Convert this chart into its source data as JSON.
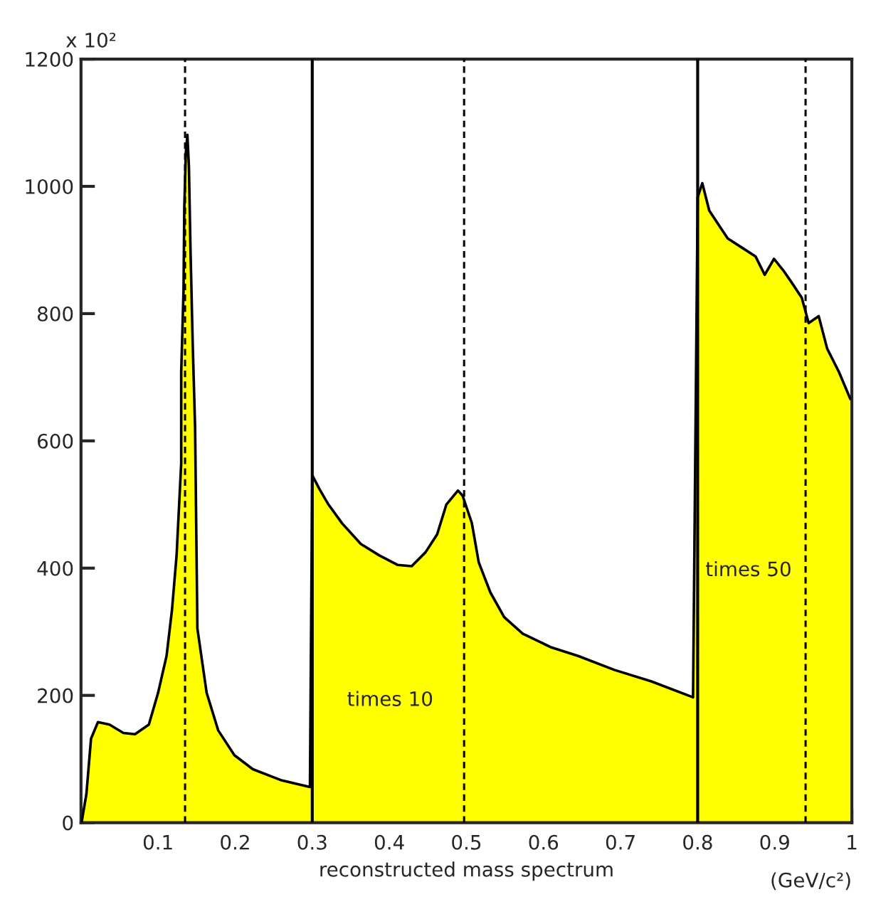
{
  "chart_data": {
    "type": "area",
    "xlabel": "reconstructed mass spectrum",
    "x": [
      0.001,
      0.007,
      0.013,
      0.022,
      0.037,
      0.055,
      0.07,
      0.088,
      0.1,
      0.111,
      0.118,
      0.124,
      0.13,
      0.13,
      0.133,
      0.134,
      0.136,
      0.138,
      0.14,
      0.142,
      0.145,
      0.148,
      0.151,
      0.163,
      0.178,
      0.199,
      0.223,
      0.259,
      0.297,
      0.3,
      0.309,
      0.321,
      0.339,
      0.363,
      0.387,
      0.411,
      0.429,
      0.447,
      0.462,
      0.474,
      0.489,
      0.495,
      0.507,
      0.516,
      0.531,
      0.549,
      0.573,
      0.609,
      0.645,
      0.692,
      0.74,
      0.794,
      0.8,
      0.806,
      0.815,
      0.827,
      0.839,
      0.857,
      0.875,
      0.887,
      0.899,
      0.911,
      0.923,
      0.935,
      0.944,
      0.957,
      0.968,
      0.983,
      0.998
    ],
    "series": [
      {
        "color": "#ffff00",
        "values": [
          2,
          45,
          132,
          158,
          154,
          141,
          139,
          154,
          204,
          262,
          334,
          420,
          565,
          708,
          836,
          966,
          1053,
          1081,
          1031,
          903,
          749,
          622,
          305,
          204,
          145,
          106,
          84,
          67,
          56,
          546,
          525,
          500,
          470,
          438,
          420,
          405,
          403,
          425,
          453,
          500,
          522,
          514,
          471,
          409,
          362,
          323,
          297,
          276,
          262,
          240,
          222,
          197,
          983,
          1005,
          962,
          940,
          918,
          904,
          890,
          861,
          886,
          868,
          847,
          825,
          785,
          796,
          745,
          709,
          666
        ]
      }
    ],
    "xlim": [
      0,
      1
    ],
    "xticks": [
      0.1,
      0.2,
      0.3,
      0.4,
      0.5,
      0.6,
      0.7,
      0.8,
      0.9,
      1
    ],
    "ylim": [
      0,
      1200
    ],
    "yticks": [
      0,
      200,
      400,
      600,
      800,
      1000,
      1200
    ],
    "ref_lines": [
      {
        "axis": "x",
        "value": 0.3,
        "color": "#000000",
        "line_style": "solid"
      },
      {
        "axis": "x",
        "value": 0.8,
        "color": "#000000",
        "line_style": "solid"
      },
      {
        "axis": "x",
        "value": 0.135,
        "color": "#000000",
        "line_style": "dashed"
      },
      {
        "axis": "x",
        "value": 0.497,
        "color": "#000000",
        "line_style": "dashed"
      },
      {
        "axis": "x",
        "value": 0.94,
        "color": "#000000",
        "line_style": "dashed"
      }
    ],
    "annotations": [
      "x 10²",
      "(GeV/c²)",
      "times 10",
      "times 50"
    ],
    "grid": false,
    "legend": false
  }
}
